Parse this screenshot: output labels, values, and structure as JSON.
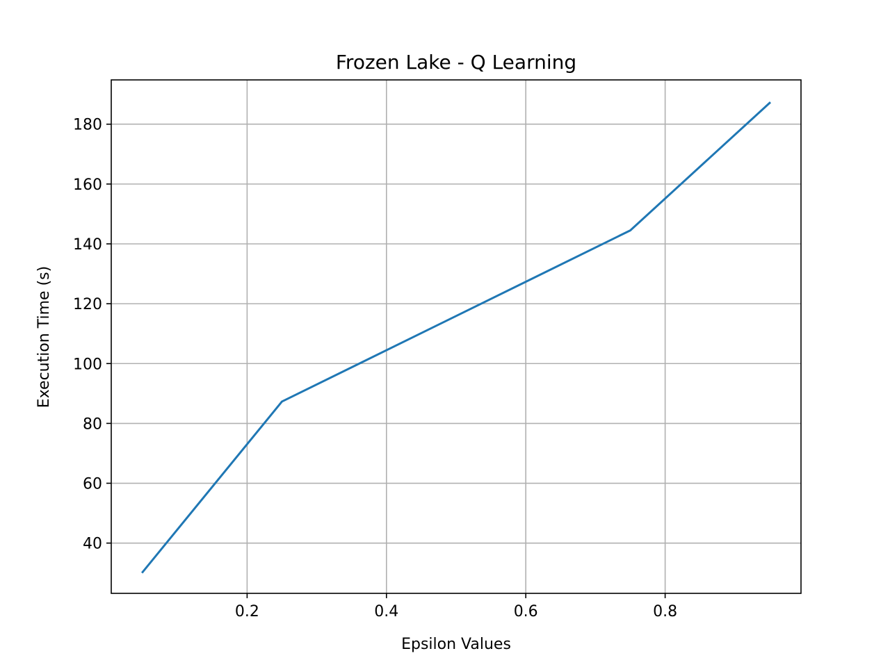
{
  "chart_data": {
    "type": "line",
    "title": "Frozen Lake - Q Learning",
    "xlabel": "Epsilon Values",
    "ylabel": "Execution Time (s)",
    "xlim": [
      0.005,
      0.995
    ],
    "ylim": [
      23.2,
      194.8
    ],
    "x_ticks": [
      0.2,
      0.4,
      0.6,
      0.8
    ],
    "x_tick_labels": [
      "0.2",
      "0.4",
      "0.6",
      "0.8"
    ],
    "y_ticks": [
      40,
      60,
      80,
      100,
      120,
      140,
      160,
      180
    ],
    "y_tick_labels": [
      "40",
      "60",
      "80",
      "100",
      "120",
      "140",
      "160",
      "180"
    ],
    "grid": true,
    "legend": "none",
    "series": [
      {
        "color": "#1f77b4",
        "x": [
          0.05,
          0.25,
          0.75,
          0.95
        ],
        "y": [
          30.3,
          87.3,
          144.5,
          187.1
        ]
      }
    ]
  }
}
